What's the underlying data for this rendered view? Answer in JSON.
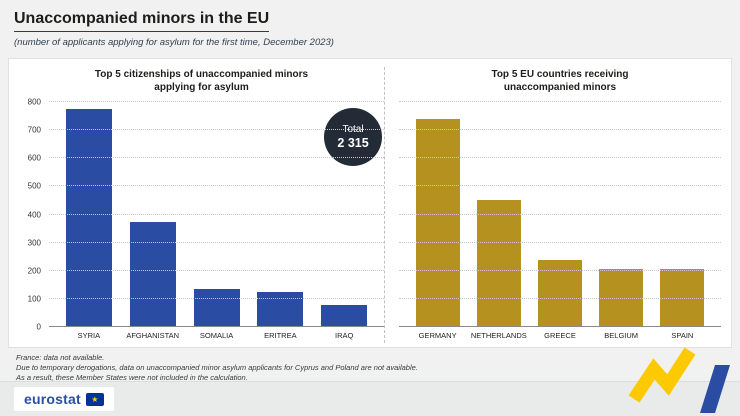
{
  "header": {
    "title": "Unaccompanied minors in the EU",
    "subtitle": "(number of applicants applying for asylum for the first time, December 2023)"
  },
  "total_badge": {
    "label": "Total",
    "value": "2 315"
  },
  "chart_data": [
    {
      "type": "bar",
      "title": "Top 5 citizenships of unaccompanied minors applying for asylum",
      "categories": [
        "SYRIA",
        "AFGHANISTAN",
        "SOMALIA",
        "ERITREA",
        "IRAQ"
      ],
      "values": [
        775,
        375,
        135,
        125,
        80
      ],
      "xlabel": "",
      "ylabel": "",
      "ylim": [
        0,
        800
      ],
      "yticks": [
        0,
        100,
        200,
        300,
        400,
        500,
        600,
        700,
        800
      ],
      "show_yaxis": true,
      "grid": "dotted-horizontal",
      "legend": "none",
      "color": "#2b4ca3"
    },
    {
      "type": "bar",
      "title": "Top 5 EU countries receiving unaccompanied minors",
      "categories": [
        "GERMANY",
        "NETHERLANDS",
        "GREECE",
        "BELGIUM",
        "SPAIN"
      ],
      "values": [
        740,
        450,
        240,
        205,
        205
      ],
      "xlabel": "",
      "ylabel": "",
      "ylim": [
        0,
        800
      ],
      "yticks": [
        0,
        100,
        200,
        300,
        400,
        500,
        600,
        700,
        800
      ],
      "show_yaxis": false,
      "grid": "dotted-horizontal",
      "legend": "none",
      "color": "#b5921f"
    }
  ],
  "footnotes": [
    "France: data not available.",
    "Due to temporary derogations, data on unaccompanied minor asylum applicants for Cyprus and Poland are not available.",
    "As a result, these Member States were not included in the calculation."
  ],
  "footer": {
    "brand": "eurostat"
  },
  "colors": {
    "bar_blue": "#2b4ca3",
    "bar_gold": "#b5921f",
    "badge_background": "#232c36",
    "eu_blue": "#003399",
    "eu_yellow": "#ffcc00"
  }
}
